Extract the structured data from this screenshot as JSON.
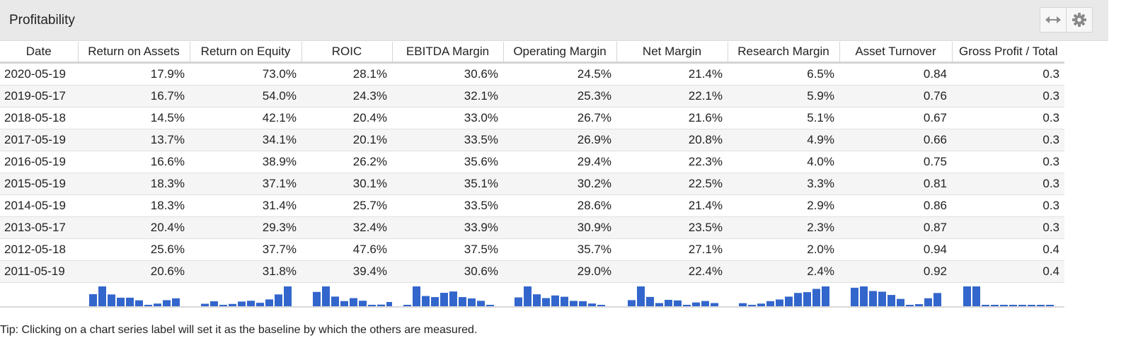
{
  "panel": {
    "title": "Profitability"
  },
  "header_buttons": [
    {
      "name": "expand-button",
      "icon": "horizontal-arrows-icon"
    },
    {
      "name": "settings-button",
      "icon": "gear-icon"
    }
  ],
  "table": {
    "columns": [
      "Date",
      "Return on Assets",
      "Return on Equity",
      "ROIC",
      "EBITDA Margin",
      "Operating Margin",
      "Net Margin",
      "Research Margin",
      "Asset Turnover",
      "Gross Profit / Total"
    ],
    "rows": [
      [
        "2020-05-19",
        "17.9%",
        "73.0%",
        "28.1%",
        "30.6%",
        "24.5%",
        "21.4%",
        "6.5%",
        "0.84",
        "0.3"
      ],
      [
        "2019-05-17",
        "16.7%",
        "54.0%",
        "24.3%",
        "32.1%",
        "25.3%",
        "22.1%",
        "5.9%",
        "0.76",
        "0.3"
      ],
      [
        "2018-05-18",
        "14.5%",
        "42.1%",
        "20.4%",
        "33.0%",
        "26.7%",
        "21.6%",
        "5.1%",
        "0.67",
        "0.3"
      ],
      [
        "2017-05-19",
        "13.7%",
        "34.1%",
        "20.1%",
        "33.5%",
        "26.9%",
        "20.8%",
        "4.9%",
        "0.66",
        "0.3"
      ],
      [
        "2016-05-19",
        "16.6%",
        "38.9%",
        "26.2%",
        "35.6%",
        "29.4%",
        "22.3%",
        "4.0%",
        "0.75",
        "0.3"
      ],
      [
        "2015-05-19",
        "18.3%",
        "37.1%",
        "30.1%",
        "35.1%",
        "30.2%",
        "22.5%",
        "3.3%",
        "0.81",
        "0.3"
      ],
      [
        "2014-05-19",
        "18.3%",
        "31.4%",
        "25.7%",
        "33.5%",
        "28.6%",
        "21.4%",
        "2.9%",
        "0.86",
        "0.3"
      ],
      [
        "2013-05-17",
        "20.4%",
        "29.3%",
        "32.4%",
        "33.9%",
        "30.9%",
        "23.5%",
        "2.3%",
        "0.87",
        "0.3"
      ],
      [
        "2012-05-18",
        "25.6%",
        "37.7%",
        "47.6%",
        "37.5%",
        "35.7%",
        "27.1%",
        "2.0%",
        "0.94",
        "0.4"
      ],
      [
        "2011-05-19",
        "20.6%",
        "31.8%",
        "39.4%",
        "30.6%",
        "29.0%",
        "22.4%",
        "2.4%",
        "0.92",
        "0.4"
      ]
    ]
  },
  "sparkline_color": "#3366cc",
  "tip": "Tip: Clicking on a chart series label will set it as the baseline by which the others are measured."
}
